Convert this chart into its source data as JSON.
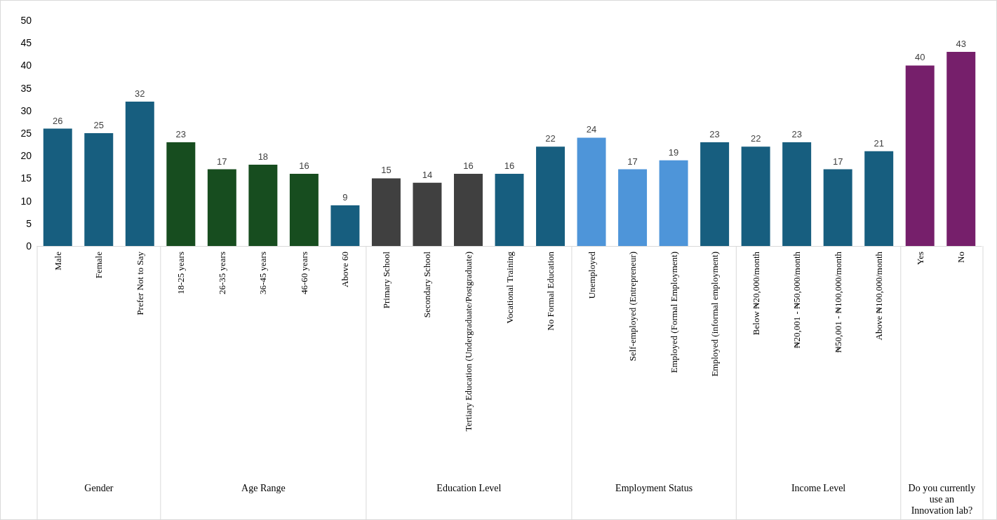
{
  "chart_data": {
    "type": "bar",
    "categories": [
      "Male",
      "Female",
      "Prefer Not to Say",
      "18-25 years",
      "26-35 years",
      "36-45 years",
      "46-60 years",
      "Above 60",
      "Primary School",
      "Secondary School",
      "Tertiary Education (Undergraduate/Postgraduate)",
      "Vocational Training",
      "No Formal Education",
      "Unemployed",
      "Self-employed (Entrepreneur)",
      "Employed (Formal Employment)",
      "Employed (informal employment)",
      "Below ₦20,000/month",
      "₦20,001 - ₦50,000/month",
      "₦50,001 - ₦100,000/month",
      "Above ₦100,000/month",
      "Yes",
      "No"
    ],
    "values": [
      26,
      25,
      32,
      23,
      17,
      18,
      16,
      9,
      15,
      14,
      16,
      16,
      22,
      24,
      17,
      19,
      23,
      22,
      23,
      17,
      21,
      40,
      43
    ],
    "colors": [
      "#175e7f",
      "#175e7f",
      "#175e7f",
      "#174d1f",
      "#174d1f",
      "#174d1f",
      "#174d1f",
      "#175e7f",
      "#404040",
      "#404040",
      "#404040",
      "#175e7f",
      "#175e7f",
      "#4e95d9",
      "#4e95d9",
      "#4e95d9",
      "#175e7f",
      "#175e7f",
      "#175e7f",
      "#175e7f",
      "#175e7f",
      "#761f6b",
      "#761f6b"
    ],
    "ylim": [
      0,
      50
    ],
    "yticks": [
      0,
      5,
      10,
      15,
      20,
      25,
      30,
      35,
      40,
      45,
      50
    ],
    "grid": false,
    "data_labels": true,
    "annotations": [
      "Gender",
      "Age Range",
      "Education Level",
      "Employment Status",
      "Income Level",
      "Do you currently use an Innovation lab?"
    ]
  }
}
